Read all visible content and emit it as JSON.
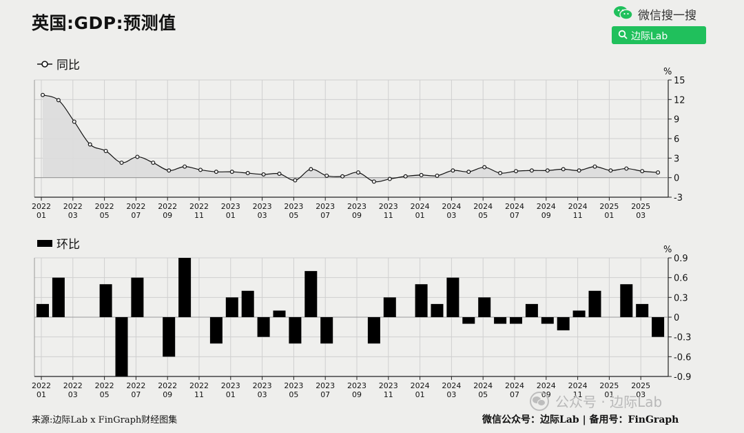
{
  "title": "英国:GDP:预测值",
  "weixin": {
    "label": "微信搜一搜",
    "search_text": "边际Lab",
    "brand_color": "#20c05c"
  },
  "chart_data": [
    {
      "type": "line",
      "legend": "同比",
      "unit": "%",
      "x": [
        "2022-01",
        "2022-02",
        "2022-03",
        "2022-04",
        "2022-05",
        "2022-06",
        "2022-07",
        "2022-08",
        "2022-09",
        "2022-10",
        "2022-11",
        "2022-12",
        "2023-01",
        "2023-02",
        "2023-03",
        "2023-04",
        "2023-05",
        "2023-06",
        "2023-07",
        "2023-08",
        "2023-09",
        "2023-10",
        "2023-11",
        "2023-12",
        "2024-01",
        "2024-02",
        "2024-03",
        "2024-04",
        "2024-05",
        "2024-06",
        "2024-07",
        "2024-08",
        "2024-09",
        "2024-10",
        "2024-11",
        "2024-12",
        "2025-01",
        "2025-02",
        "2025-03",
        "2025-04"
      ],
      "values": [
        12.7,
        11.9,
        8.6,
        5.1,
        4.1,
        2.3,
        3.2,
        2.3,
        1.1,
        1.7,
        1.2,
        0.9,
        0.9,
        0.7,
        0.5,
        0.6,
        -0.4,
        1.3,
        0.3,
        0.2,
        0.8,
        -0.6,
        -0.2,
        0.2,
        0.4,
        0.3,
        1.1,
        0.9,
        1.6,
        0.7,
        1.0,
        1.1,
        1.1,
        1.3,
        1.1,
        1.7,
        1.1,
        1.4,
        1.0,
        0.8
      ],
      "ylim": [
        -3,
        15
      ],
      "yticks": [
        "15",
        "12",
        "9",
        "6",
        "3",
        "0",
        "-3"
      ],
      "grid": true,
      "style": {
        "line_color": "#111111",
        "fill_color": "#dcdcdc",
        "marker_fill": "#ffffff"
      }
    },
    {
      "type": "bar",
      "legend": "环比",
      "unit": "%",
      "x": [
        "2022-01",
        "2022-02",
        "2022-03",
        "2022-04",
        "2022-05",
        "2022-06",
        "2022-07",
        "2022-08",
        "2022-09",
        "2022-10",
        "2022-11",
        "2022-12",
        "2023-01",
        "2023-02",
        "2023-03",
        "2023-04",
        "2023-05",
        "2023-06",
        "2023-07",
        "2023-08",
        "2023-09",
        "2023-10",
        "2023-11",
        "2023-12",
        "2024-01",
        "2024-02",
        "2024-03",
        "2024-04",
        "2024-05",
        "2024-06",
        "2024-07",
        "2024-08",
        "2024-09",
        "2024-10",
        "2024-11",
        "2024-12",
        "2025-01",
        "2025-02",
        "2025-03",
        "2025-04"
      ],
      "values": [
        0.2,
        0.6,
        0.0,
        0.0,
        0.5,
        -0.9,
        0.6,
        0.0,
        -0.6,
        0.9,
        0.0,
        -0.4,
        0.3,
        0.4,
        -0.3,
        0.1,
        -0.4,
        0.7,
        -0.4,
        0.0,
        0.0,
        -0.4,
        0.3,
        0.0,
        0.5,
        0.2,
        0.6,
        -0.1,
        0.3,
        -0.1,
        -0.1,
        0.2,
        -0.1,
        -0.2,
        0.1,
        0.4,
        0.0,
        0.5,
        0.2,
        -0.3
      ],
      "ylim": [
        -0.9,
        0.9
      ],
      "yticks": [
        "0.9",
        "0.6",
        "0.3",
        "0",
        "-0.3",
        "-0.6",
        "-0.9"
      ],
      "grid": true,
      "style": {
        "bar_color": "#000000"
      }
    }
  ],
  "x_tick_labels": [
    {
      "year": "2022",
      "month": "01"
    },
    {
      "year": "2022",
      "month": "03"
    },
    {
      "year": "2022",
      "month": "05"
    },
    {
      "year": "2022",
      "month": "07"
    },
    {
      "year": "2022",
      "month": "09"
    },
    {
      "year": "2022",
      "month": "11"
    },
    {
      "year": "2023",
      "month": "01"
    },
    {
      "year": "2023",
      "month": "03"
    },
    {
      "year": "2023",
      "month": "05"
    },
    {
      "year": "2023",
      "month": "07"
    },
    {
      "year": "2023",
      "month": "09"
    },
    {
      "year": "2023",
      "month": "11"
    },
    {
      "year": "2024",
      "month": "01"
    },
    {
      "year": "2024",
      "month": "03"
    },
    {
      "year": "2024",
      "month": "05"
    },
    {
      "year": "2024",
      "month": "07"
    },
    {
      "year": "2024",
      "month": "09"
    },
    {
      "year": "2024",
      "month": "11"
    },
    {
      "year": "2025",
      "month": "01"
    },
    {
      "year": "2025",
      "month": "03"
    }
  ],
  "footer": {
    "source": "来源:边际Lab x FinGraph财经图集",
    "right": "微信公众号：边际Lab  |  备用号：FinGraph"
  },
  "watermark": "公众号 · 边际Lab"
}
